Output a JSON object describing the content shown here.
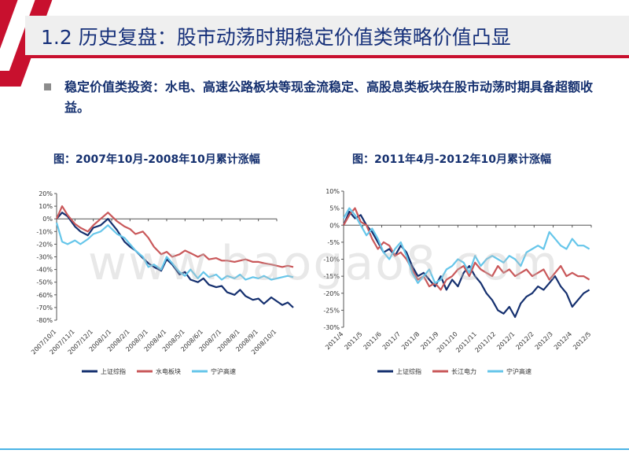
{
  "title": "1.2 历史复盘：股市动荡时期稳定价值类策略价值凸显",
  "body_text": "稳定价值类投资：水电、高速公路板块等现金流稳定、高股息类板块在股市动荡时期具备超额收益。",
  "watermark": "www.baogao8.com",
  "colors": {
    "accent_red": "#c8102e",
    "title_blue": "#16307a",
    "rule_blue": "#4ab3e6"
  },
  "chart_data": [
    {
      "type": "line",
      "title": "图：2007年10月-2008年10月累计涨幅",
      "ylim": [
        -0.8,
        0.2
      ],
      "yticks": [
        0.2,
        0.1,
        0.0,
        -0.1,
        -0.2,
        -0.3,
        -0.4,
        -0.5,
        -0.6,
        -0.7,
        -0.8
      ],
      "ytick_labels": [
        "20%",
        "10%",
        "0%",
        "-10%",
        "-20%",
        "-30%",
        "-40%",
        "-50%",
        "-60%",
        "-70%",
        "-80%"
      ],
      "x_categories": [
        "2007/10/1",
        "2007/11/1",
        "2007/12/1",
        "2008/1/1",
        "2008/2/1",
        "2008/3/1",
        "2008/4/1",
        "2008/5/1",
        "2008/6/1",
        "2008/7/1",
        "2008/8/1",
        "2008/9/1",
        "2008/10/1"
      ],
      "grid": false,
      "legend_position": "bottom",
      "series": [
        {
          "name": "上证综指",
          "color": "#15306f",
          "x": [
            0,
            0.3,
            0.6,
            1.0,
            1.3,
            1.7,
            2.0,
            2.4,
            2.8,
            3.3,
            3.7,
            4.0,
            4.3,
            4.7,
            5.0,
            5.3,
            5.7,
            6.0,
            6.3,
            6.7,
            7.0,
            7.3,
            7.7,
            8.0,
            8.3,
            8.7,
            9.0,
            9.3,
            9.7,
            10.0,
            10.3,
            10.7,
            11.0,
            11.3,
            11.7,
            12.0,
            12.3,
            12.6,
            12.9
          ],
          "values": [
            0,
            0.05,
            0.02,
            -0.06,
            -0.1,
            -0.13,
            -0.07,
            -0.05,
            0.0,
            -0.09,
            -0.18,
            -0.22,
            -0.25,
            -0.31,
            -0.35,
            -0.38,
            -0.41,
            -0.32,
            -0.36,
            -0.44,
            -0.42,
            -0.48,
            -0.5,
            -0.47,
            -0.52,
            -0.54,
            -0.53,
            -0.58,
            -0.6,
            -0.56,
            -0.61,
            -0.64,
            -0.63,
            -0.67,
            -0.62,
            -0.65,
            -0.68,
            -0.66,
            -0.7
          ]
        },
        {
          "name": "水电板块",
          "color": "#c9585a",
          "x": [
            0,
            0.3,
            0.6,
            1.0,
            1.3,
            1.7,
            2.0,
            2.4,
            2.8,
            3.3,
            3.7,
            4.0,
            4.3,
            4.7,
            5.0,
            5.3,
            5.7,
            6.0,
            6.3,
            6.7,
            7.0,
            7.3,
            7.7,
            8.0,
            8.3,
            8.7,
            9.0,
            9.3,
            9.7,
            10.0,
            10.3,
            10.7,
            11.0,
            11.3,
            11.7,
            12.0,
            12.3,
            12.6,
            12.9
          ],
          "values": [
            0,
            0.1,
            0.03,
            -0.04,
            -0.07,
            -0.1,
            -0.05,
            0.0,
            0.05,
            -0.02,
            -0.06,
            -0.08,
            -0.12,
            -0.1,
            -0.15,
            -0.22,
            -0.28,
            -0.26,
            -0.3,
            -0.28,
            -0.25,
            -0.27,
            -0.3,
            -0.28,
            -0.32,
            -0.31,
            -0.33,
            -0.33,
            -0.34,
            -0.33,
            -0.32,
            -0.34,
            -0.34,
            -0.35,
            -0.36,
            -0.37,
            -0.38,
            -0.37,
            -0.38
          ]
        },
        {
          "name": "宁沪高速",
          "color": "#66c6ea",
          "x": [
            0,
            0.3,
            0.6,
            1.0,
            1.3,
            1.7,
            2.0,
            2.4,
            2.8,
            3.3,
            3.7,
            4.0,
            4.3,
            4.7,
            5.0,
            5.3,
            5.7,
            6.0,
            6.3,
            6.7,
            7.0,
            7.3,
            7.7,
            8.0,
            8.3,
            8.7,
            9.0,
            9.3,
            9.7,
            10.0,
            10.3,
            10.7,
            11.0,
            11.3,
            11.7,
            12.0,
            12.3,
            12.6,
            12.9
          ],
          "values": [
            -0.03,
            -0.18,
            -0.2,
            -0.17,
            -0.2,
            -0.16,
            -0.12,
            -0.1,
            -0.05,
            -0.12,
            -0.15,
            -0.2,
            -0.25,
            -0.3,
            -0.38,
            -0.36,
            -0.4,
            -0.3,
            -0.35,
            -0.42,
            -0.45,
            -0.4,
            -0.47,
            -0.42,
            -0.46,
            -0.44,
            -0.48,
            -0.45,
            -0.47,
            -0.44,
            -0.48,
            -0.46,
            -0.47,
            -0.45,
            -0.48,
            -0.47,
            -0.46,
            -0.45,
            -0.46
          ]
        }
      ]
    },
    {
      "type": "line",
      "title": "图：2011年4月-2012年10月累计涨幅",
      "ylim": [
        -0.3,
        0.1
      ],
      "yticks": [
        0.1,
        0.05,
        0.0,
        -0.05,
        -0.1,
        -0.15,
        -0.2,
        -0.25,
        -0.3
      ],
      "ytick_labels": [
        "10%",
        "5%",
        "0%",
        "-5%",
        "-10%",
        "-15%",
        "-20%",
        "-25%",
        "-30%"
      ],
      "x_categories": [
        "2011/4",
        "2011/5",
        "2011/6",
        "2011/7",
        "2011/8",
        "2011/9",
        "2011/10",
        "2011/11",
        "2011/12",
        "2012/1",
        "2012/2",
        "2012/3",
        "2012/4",
        "2012/5"
      ],
      "grid": false,
      "legend_position": "bottom",
      "series": [
        {
          "name": "上证综指",
          "color": "#15306f",
          "x": [
            0,
            0.3,
            0.6,
            0.9,
            1.2,
            1.5,
            1.8,
            2.1,
            2.4,
            2.7,
            3.0,
            3.3,
            3.6,
            3.9,
            4.2,
            4.5,
            4.8,
            5.1,
            5.4,
            5.7,
            6.0,
            6.3,
            6.6,
            6.9,
            7.2,
            7.5,
            7.8,
            8.1,
            8.4,
            8.7,
            9.0,
            9.3,
            9.6,
            9.9,
            10.2,
            10.5,
            10.8,
            11.1,
            11.4,
            11.7,
            12.0,
            12.3,
            12.6,
            12.9
          ],
          "values": [
            0.0,
            0.04,
            0.02,
            0.03,
            0.0,
            -0.02,
            -0.05,
            -0.08,
            -0.07,
            -0.09,
            -0.06,
            -0.08,
            -0.12,
            -0.15,
            -0.14,
            -0.16,
            -0.18,
            -0.15,
            -0.19,
            -0.16,
            -0.18,
            -0.14,
            -0.12,
            -0.15,
            -0.17,
            -0.2,
            -0.22,
            -0.25,
            -0.26,
            -0.24,
            -0.27,
            -0.23,
            -0.21,
            -0.2,
            -0.18,
            -0.19,
            -0.17,
            -0.15,
            -0.18,
            -0.2,
            -0.24,
            -0.22,
            -0.2,
            -0.19
          ]
        },
        {
          "name": "长江电力",
          "color": "#c9585a",
          "x": [
            0,
            0.3,
            0.6,
            0.9,
            1.2,
            1.5,
            1.8,
            2.1,
            2.4,
            2.7,
            3.0,
            3.3,
            3.6,
            3.9,
            4.2,
            4.5,
            4.8,
            5.1,
            5.4,
            5.7,
            6.0,
            6.3,
            6.6,
            6.9,
            7.2,
            7.5,
            7.8,
            8.1,
            8.4,
            8.7,
            9.0,
            9.3,
            9.6,
            9.9,
            10.2,
            10.5,
            10.8,
            11.1,
            11.4,
            11.7,
            12.0,
            12.3,
            12.6,
            12.9
          ],
          "values": [
            0.0,
            0.03,
            0.05,
            0.01,
            0.0,
            -0.04,
            -0.07,
            -0.05,
            -0.06,
            -0.09,
            -0.08,
            -0.1,
            -0.13,
            -0.16,
            -0.15,
            -0.18,
            -0.17,
            -0.19,
            -0.16,
            -0.15,
            -0.13,
            -0.12,
            -0.15,
            -0.11,
            -0.13,
            -0.14,
            -0.15,
            -0.12,
            -0.14,
            -0.13,
            -0.15,
            -0.14,
            -0.13,
            -0.15,
            -0.14,
            -0.13,
            -0.16,
            -0.14,
            -0.12,
            -0.15,
            -0.14,
            -0.15,
            -0.15,
            -0.16
          ]
        },
        {
          "name": "宁沪高速",
          "color": "#66c6ea",
          "x": [
            0,
            0.3,
            0.6,
            0.9,
            1.2,
            1.5,
            1.8,
            2.1,
            2.4,
            2.7,
            3.0,
            3.3,
            3.6,
            3.9,
            4.2,
            4.5,
            4.8,
            5.1,
            5.4,
            5.7,
            6.0,
            6.3,
            6.6,
            6.9,
            7.2,
            7.5,
            7.8,
            8.1,
            8.4,
            8.7,
            9.0,
            9.3,
            9.6,
            9.9,
            10.2,
            10.5,
            10.8,
            11.1,
            11.4,
            11.7,
            12.0,
            12.3,
            12.6,
            12.9
          ],
          "values": [
            0.02,
            0.05,
            0.03,
            0.0,
            -0.03,
            -0.01,
            -0.04,
            -0.08,
            -0.1,
            -0.07,
            -0.05,
            -0.09,
            -0.14,
            -0.17,
            -0.15,
            -0.13,
            -0.17,
            -0.16,
            -0.13,
            -0.12,
            -0.1,
            -0.11,
            -0.14,
            -0.09,
            -0.12,
            -0.1,
            -0.09,
            -0.1,
            -0.11,
            -0.09,
            -0.1,
            -0.12,
            -0.08,
            -0.07,
            -0.06,
            -0.07,
            -0.02,
            -0.04,
            -0.06,
            -0.07,
            -0.04,
            -0.06,
            -0.06,
            -0.07
          ]
        }
      ]
    }
  ]
}
